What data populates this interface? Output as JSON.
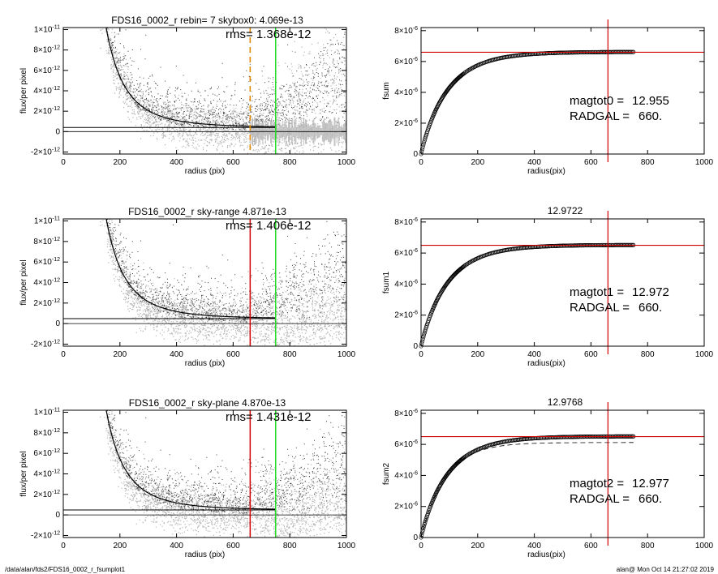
{
  "footer": {
    "left": "/data/alan/fds2/FDS16_0002_r_fsumplot1",
    "right": "alan@  Mon Oct 14 21:27:02 2019"
  },
  "colors": {
    "red": "#d40000",
    "green": "#22dd22",
    "orange": "#e08a00",
    "light_gray": "#b4b4b4",
    "dark_gray": "#3c3c3c"
  },
  "left_panels": [
    {
      "title": "FDS16_0002_r rebin= 7    skybox0:  4.069e-13",
      "rms": "rms= 1.368e-12",
      "xlabel": "radius (pix)",
      "ylabel": "flux/per pixel",
      "marker_type": "orange-dashed",
      "marker_x": 660,
      "green_x": 750,
      "yticks": [
        {
          "v": 1e-11,
          "m": "1",
          "e": "-11"
        },
        {
          "v": 8e-12,
          "m": "8",
          "e": "-12"
        },
        {
          "v": 6e-12,
          "m": "6",
          "e": "-12"
        },
        {
          "v": 4e-12,
          "m": "4",
          "e": "-12"
        },
        {
          "v": 2e-12,
          "m": "2",
          "e": "-12"
        },
        {
          "v": 0,
          "m": "0",
          "e": ""
        },
        {
          "v": -2e-12,
          "m": "-2",
          "e": "-12"
        }
      ]
    },
    {
      "title": "FDS16_0002_r sky-range  4.871e-13",
      "rms": "rms= 1.406e-12",
      "xlabel": "radius (pix)",
      "ylabel": "flux/per pixel",
      "marker_type": "red",
      "marker_x": 660,
      "green_x": 750,
      "yticks": [
        {
          "v": 1e-11,
          "m": "1",
          "e": "-11"
        },
        {
          "v": 8e-12,
          "m": "8",
          "e": "-12"
        },
        {
          "v": 6e-12,
          "m": "6",
          "e": "-12"
        },
        {
          "v": 4e-12,
          "m": "4",
          "e": "-12"
        },
        {
          "v": 2e-12,
          "m": "2",
          "e": "-12"
        },
        {
          "v": 0,
          "m": "0",
          "e": ""
        },
        {
          "v": -2e-12,
          "m": "-2",
          "e": "-12"
        }
      ]
    },
    {
      "title": "FDS16_0002_r sky-plane  4.870e-13",
      "rms": "rms= 1.431e-12",
      "xlabel": "radius (pix)",
      "ylabel": "flux/per pixel",
      "marker_type": "red",
      "marker_x": 660,
      "green_x": 750,
      "yticks": [
        {
          "v": 1e-11,
          "m": "1",
          "e": "-11"
        },
        {
          "v": 8e-12,
          "m": "8",
          "e": "-12"
        },
        {
          "v": 6e-12,
          "m": "6",
          "e": "-12"
        },
        {
          "v": 4e-12,
          "m": "4",
          "e": "-12"
        },
        {
          "v": 2e-12,
          "m": "2",
          "e": "-12"
        },
        {
          "v": 0,
          "m": "0",
          "e": ""
        },
        {
          "v": -2e-12,
          "m": "-2",
          "e": "-12"
        }
      ]
    }
  ],
  "right_panels": [
    {
      "title": "",
      "ylabel": "fsum",
      "xlabel": "radius(pix)",
      "mag_label": "magtot0 =",
      "mag_value": "12.955",
      "rad_label": "RADGAL =",
      "rad_value": "660.",
      "dashed_curve": false,
      "yticks": [
        {
          "v": 8e-06,
          "m": "8",
          "e": "-6"
        },
        {
          "v": 6e-06,
          "m": "6",
          "e": "-6"
        },
        {
          "v": 4e-06,
          "m": "4",
          "e": "-6"
        },
        {
          "v": 2e-06,
          "m": "2",
          "e": "-6"
        },
        {
          "v": 0,
          "m": "0",
          "e": ""
        }
      ]
    },
    {
      "title": "12.9722",
      "ylabel": "fsum1",
      "xlabel": "radius(pix)",
      "mag_label": "magtot1 =",
      "mag_value": "12.972",
      "rad_label": "RADGAL =",
      "rad_value": "660.",
      "dashed_curve": false,
      "yticks": [
        {
          "v": 8e-06,
          "m": "8",
          "e": "-6"
        },
        {
          "v": 6e-06,
          "m": "6",
          "e": "-6"
        },
        {
          "v": 4e-06,
          "m": "4",
          "e": "-6"
        },
        {
          "v": 2e-06,
          "m": "2",
          "e": "-6"
        },
        {
          "v": 0,
          "m": "0",
          "e": ""
        }
      ]
    },
    {
      "title": "12.9768",
      "ylabel": "fsum2",
      "xlabel": "radius(pix)",
      "mag_label": "magtot2 =",
      "mag_value": "12.977",
      "rad_label": "RADGAL =",
      "rad_value": "660.",
      "dashed_curve": true,
      "yticks": [
        {
          "v": 8e-06,
          "m": "8",
          "e": "-6"
        },
        {
          "v": 6e-06,
          "m": "6",
          "e": "-6"
        },
        {
          "v": 4e-06,
          "m": "4",
          "e": "-6"
        },
        {
          "v": 2e-06,
          "m": "2",
          "e": "-6"
        },
        {
          "v": 0,
          "m": "0",
          "e": ""
        }
      ]
    }
  ],
  "chart_data": [
    {
      "type": "scatter",
      "title": "FDS16_0002_r rebin= 7    skybox0:  4.069e-13",
      "annotation": "rms= 1.368e-12",
      "xlabel": "radius (pix)",
      "ylabel": "flux/per pixel",
      "xlim": [
        0,
        1000
      ],
      "ylim": [
        -2.2e-12,
        1.02e-11
      ],
      "xticks": [
        0,
        200,
        400,
        600,
        800,
        1000
      ],
      "profile": {
        "x": [
          150,
          180,
          200,
          250,
          300,
          350,
          400,
          500,
          600,
          700,
          750
        ],
        "y": [
          1e-11,
          6.2e-12,
          4.2e-12,
          2.2e-12,
          1.3e-12,
          8.5e-13,
          6.3e-13,
          4.6e-13,
          4.2e-13,
          4.1e-13,
          4.1e-13
        ]
      },
      "hlines": [
        4.069e-13,
        0
      ],
      "vlines": [
        {
          "x": 660,
          "style": "orange-dashed"
        },
        {
          "x": 750,
          "style": "green"
        }
      ]
    },
    {
      "type": "scatter",
      "title": "FDS16_0002_r sky-range  4.871e-13",
      "annotation": "rms= 1.406e-12",
      "xlabel": "radius (pix)",
      "ylabel": "flux/per pixel",
      "xlim": [
        0,
        1000
      ],
      "ylim": [
        -2.2e-12,
        1.02e-11
      ],
      "xticks": [
        0,
        200,
        400,
        600,
        800,
        1000
      ],
      "profile": {
        "x": [
          150,
          180,
          200,
          250,
          300,
          350,
          400,
          500,
          600,
          700,
          750
        ],
        "y": [
          1e-11,
          6.2e-12,
          4.2e-12,
          2.2e-12,
          1.3e-12,
          8.5e-13,
          6.3e-13,
          4.6e-13,
          4.2e-13,
          4.1e-13,
          4.1e-13
        ]
      },
      "hlines": [
        4.871e-13,
        0
      ],
      "vlines": [
        {
          "x": 660,
          "style": "red"
        },
        {
          "x": 750,
          "style": "green"
        }
      ]
    },
    {
      "type": "scatter",
      "title": "FDS16_0002_r sky-plane  4.870e-13",
      "annotation": "rms= 1.431e-12",
      "xlabel": "radius (pix)",
      "ylabel": "flux/per pixel",
      "xlim": [
        0,
        1000
      ],
      "ylim": [
        -2.2e-12,
        1.02e-11
      ],
      "xticks": [
        0,
        200,
        400,
        600,
        800,
        1000
      ],
      "profile": {
        "x": [
          150,
          180,
          200,
          250,
          300,
          350,
          400,
          500,
          600,
          700,
          750
        ],
        "y": [
          1e-11,
          6.2e-12,
          4.2e-12,
          2.2e-12,
          1.3e-12,
          8.5e-13,
          6.3e-13,
          4.6e-13,
          4.2e-13,
          4.1e-13,
          4.1e-13
        ]
      },
      "hlines": [
        4.87e-13,
        0
      ],
      "vlines": [
        {
          "x": 660,
          "style": "red"
        },
        {
          "x": 750,
          "style": "green"
        }
      ]
    },
    {
      "type": "line",
      "title": "",
      "xlabel": "radius(pix)",
      "ylabel": "fsum",
      "xlim": [
        0,
        1000
      ],
      "ylim": [
        0,
        8.2e-06
      ],
      "xticks": [
        0,
        200,
        400,
        600,
        800,
        1000
      ],
      "curve": {
        "x": [
          0,
          25,
          50,
          100,
          150,
          200,
          300,
          400,
          500,
          600,
          660,
          750
        ],
        "y": [
          0,
          2.2e-06,
          3.6e-06,
          5e-06,
          5.6e-06,
          5.95e-06,
          6.25e-06,
          6.4e-06,
          6.5e-06,
          6.55e-06,
          6.58e-06,
          6.62e-06
        ]
      },
      "hline": 6.6e-06,
      "vline": 660,
      "annotation": [
        "magtot0 =  12.955",
        "RADGAL =   660."
      ]
    },
    {
      "type": "line",
      "title": "12.9722",
      "xlabel": "radius(pix)",
      "ylabel": "fsum1",
      "xlim": [
        0,
        1000
      ],
      "ylim": [
        0,
        8.2e-06
      ],
      "xticks": [
        0,
        200,
        400,
        600,
        800,
        1000
      ],
      "curve": {
        "x": [
          0,
          25,
          50,
          100,
          150,
          200,
          300,
          400,
          500,
          600,
          660,
          750
        ],
        "y": [
          0,
          2.1e-06,
          3.5e-06,
          4.9e-06,
          5.55e-06,
          5.9e-06,
          6.2e-06,
          6.35e-06,
          6.45e-06,
          6.48e-06,
          6.5e-06,
          6.52e-06
        ]
      },
      "hline": 6.5e-06,
      "vline": 660,
      "annotation": [
        "magtot1 =  12.972",
        "RADGAL =   660."
      ]
    },
    {
      "type": "line",
      "title": "12.9768",
      "xlabel": "radius(pix)",
      "ylabel": "fsum2",
      "xlim": [
        0,
        1000
      ],
      "ylim": [
        0,
        8.2e-06
      ],
      "xticks": [
        0,
        200,
        400,
        600,
        800,
        1000
      ],
      "curve": {
        "x": [
          0,
          25,
          50,
          100,
          150,
          200,
          300,
          400,
          500,
          600,
          660,
          750
        ],
        "y": [
          0,
          2.1e-06,
          3.5e-06,
          4.9e-06,
          5.55e-06,
          5.9e-06,
          6.2e-06,
          6.35e-06,
          6.45e-06,
          6.48e-06,
          6.5e-06,
          6.52e-06
        ]
      },
      "dashed_curve": {
        "x": [
          0,
          50,
          100,
          200,
          300,
          400,
          500,
          600,
          750
        ],
        "y": [
          0,
          3.3e-06,
          4.6e-06,
          5.55e-06,
          5.85e-06,
          6e-06,
          6.05e-06,
          6.08e-06,
          6.1e-06
        ]
      },
      "hline": 6.5e-06,
      "vline": 660,
      "annotation": [
        "magtot2 =  12.977",
        "RADGAL =   660."
      ]
    }
  ]
}
